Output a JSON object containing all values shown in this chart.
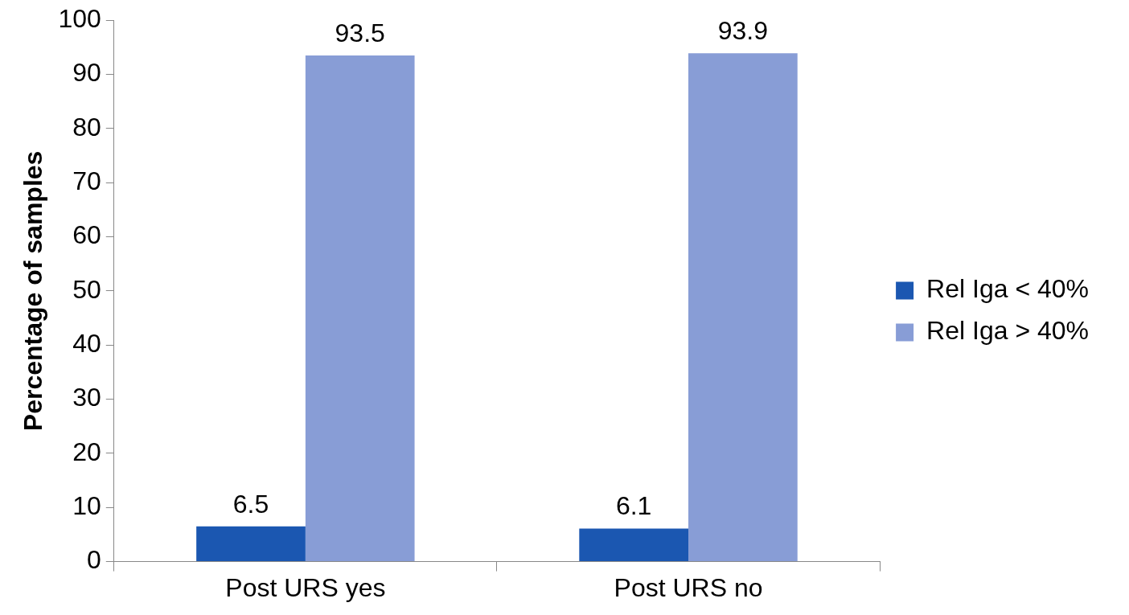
{
  "chart_data": {
    "type": "bar",
    "ylabel": "Percentage of samples",
    "categories": [
      "Post URS yes",
      "Post URS no"
    ],
    "series": [
      {
        "name": "Rel Iga < 40%",
        "color": "#1b57b1",
        "values": [
          6.5,
          6.1
        ]
      },
      {
        "name": "Rel Iga > 40%",
        "color": "#889dd6",
        "values": [
          93.5,
          93.9
        ]
      }
    ],
    "ylim": [
      0,
      100
    ],
    "yticks": [
      0,
      10,
      20,
      30,
      40,
      50,
      60,
      70,
      80,
      90,
      100
    ],
    "grid": false,
    "legend": "right",
    "data_labels": true
  }
}
